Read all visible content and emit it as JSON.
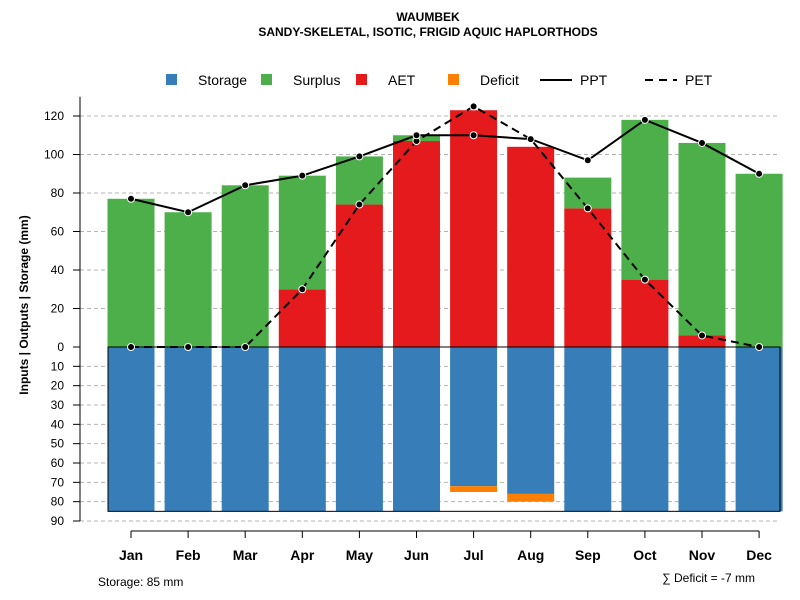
{
  "chart_data": {
    "type": "bar",
    "title": "WAUMBEK",
    "subtitle": "SANDY-SKELETAL, ISOTIC, FRIGID AQUIC HAPLORTHODS",
    "ylabel": "Inputs | Outputs | Storage     (mm)",
    "xlabel": "",
    "categories": [
      "Jan",
      "Feb",
      "Mar",
      "Apr",
      "May",
      "Jun",
      "Jul",
      "Aug",
      "Sep",
      "Oct",
      "Nov",
      "Dec"
    ],
    "ylim_upper": [
      0,
      130
    ],
    "ylim_lower": [
      0,
      90
    ],
    "upper_ticks": [
      "0",
      "20",
      "40",
      "60",
      "80",
      "100",
      "120"
    ],
    "lower_ticks": [
      "10",
      "20",
      "30",
      "40",
      "50",
      "60",
      "70",
      "80",
      "90"
    ],
    "grid": true,
    "legend_position": "top",
    "legend": [
      {
        "label": "Storage",
        "kind": "square",
        "color": "#377EB8"
      },
      {
        "label": "Surplus",
        "kind": "square",
        "color": "#4DAF4A"
      },
      {
        "label": "AET",
        "kind": "square",
        "color": "#E41A1C"
      },
      {
        "label": "Deficit",
        "kind": "square",
        "color": "#FF7F00"
      },
      {
        "label": "PPT",
        "kind": "solid"
      },
      {
        "label": "PET",
        "kind": "dashed"
      }
    ],
    "series": [
      {
        "name": "AET",
        "color": "#E41A1C",
        "values": [
          0,
          0,
          0,
          30,
          74,
          107,
          123,
          104,
          72,
          35,
          6,
          0
        ]
      },
      {
        "name": "Surplus",
        "color": "#4DAF4A",
        "values": [
          77,
          70,
          84,
          59,
          25,
          3,
          0,
          0,
          16,
          83,
          100,
          90
        ]
      },
      {
        "name": "Storage",
        "color": "#377EB8",
        "values": [
          85,
          85,
          85,
          85,
          85,
          85,
          72,
          76,
          85,
          85,
          85,
          85
        ]
      },
      {
        "name": "Deficit",
        "color": "#FF7F00",
        "values": [
          0,
          0,
          0,
          0,
          0,
          0,
          3,
          4,
          0,
          0,
          0,
          0
        ]
      },
      {
        "name": "PPT",
        "values": [
          77,
          70,
          84,
          89,
          99,
          110,
          110,
          108,
          97,
          118,
          106,
          90
        ]
      },
      {
        "name": "PET",
        "values": [
          0,
          0,
          0,
          30,
          74,
          107,
          125,
          108,
          72,
          35,
          6,
          0
        ]
      }
    ],
    "annotations": {
      "storage": "Storage: 85 mm",
      "deficit": "∑ Deficit = -7 mm"
    }
  }
}
